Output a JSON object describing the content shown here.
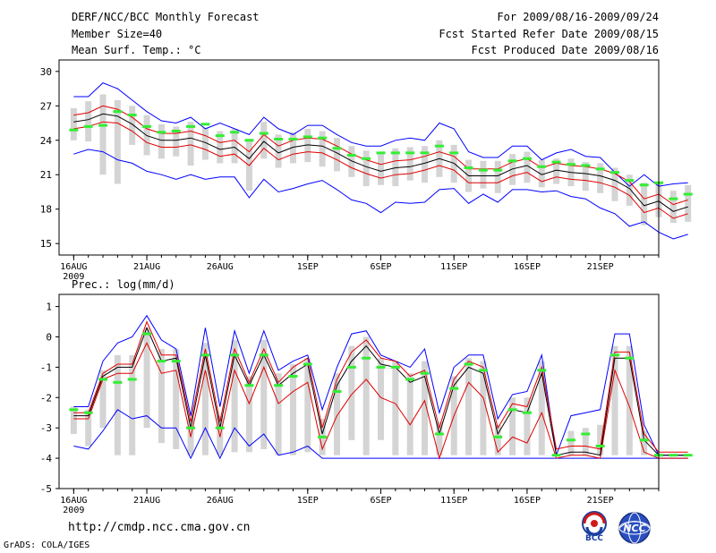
{
  "header": {
    "title": "DERF/NCC/BCC Monthly Forecast",
    "member_size": "Member Size=40",
    "variable": "Mean Surf. Temp.: °C",
    "period": "For 2009/08/16-2009/09/24",
    "fcst_started": "Fcst Started Refer Date 2009/08/15",
    "fcst_produced": "Fcst Produced Date 2009/08/16"
  },
  "precip_label": "Prec.: log(mm/d)",
  "footer": {
    "url": "http://cmdp.ncc.cma.gov.cn",
    "grads_credit": "GrADS: COLA/IGES",
    "logo_left_text": "BCC",
    "logo_right_text": "NCC"
  },
  "colors": {
    "frame": "#000000",
    "bar": "#d4d4d4",
    "mean": "#000000",
    "std_band": "#e00000",
    "envelope": "#0000ff",
    "marker": "#33ee33",
    "tick_grid": "#000000"
  },
  "chart_data": [
    {
      "name": "temperature-chart",
      "type": "line",
      "ylabel": "Mean Surf. Temp.: °C",
      "ylim": [
        14,
        31
      ],
      "yticks": [
        15,
        18,
        21,
        24,
        27,
        30
      ],
      "x_labels": [
        {
          "day": 0,
          "text": "16AUG",
          "sub": "2009"
        },
        {
          "day": 5,
          "text": "21AUG"
        },
        {
          "day": 10,
          "text": "26AUG"
        },
        {
          "day": 16,
          "text": "1SEP"
        },
        {
          "day": 21,
          "text": "6SEP"
        },
        {
          "day": 26,
          "text": "11SEP"
        },
        {
          "day": 31,
          "text": "16SEP"
        },
        {
          "day": 36,
          "text": "21SEP"
        }
      ],
      "x_range": [
        -1,
        40
      ],
      "series": [
        {
          "name": "mean",
          "values": [
            25.6,
            25.8,
            26.3,
            26.1,
            25.4,
            24.4,
            24.0,
            24.0,
            24.2,
            23.8,
            23.2,
            23.4,
            22.4,
            23.9,
            22.9,
            23.4,
            23.6,
            23.5,
            22.9,
            22.2,
            21.7,
            21.3,
            21.6,
            21.7,
            22.0,
            22.4,
            22.0,
            20.9,
            20.9,
            20.9,
            21.5,
            21.8,
            21.0,
            21.4,
            21.2,
            21.1,
            20.9,
            20.5,
            19.8,
            18.3,
            18.7,
            17.8,
            18.2
          ]
        },
        {
          "name": "upper-std",
          "values": [
            26.2,
            26.4,
            27.0,
            26.7,
            26.0,
            25.0,
            24.6,
            24.6,
            24.8,
            24.4,
            23.8,
            24.0,
            23.0,
            24.5,
            23.5,
            24.0,
            24.2,
            24.1,
            23.5,
            22.8,
            22.3,
            21.9,
            22.2,
            22.3,
            22.6,
            23.0,
            22.6,
            21.5,
            21.5,
            21.5,
            22.1,
            22.4,
            21.6,
            22.0,
            21.8,
            21.7,
            21.5,
            21.1,
            20.4,
            18.9,
            19.3,
            18.4,
            18.8
          ]
        },
        {
          "name": "lower-std",
          "values": [
            25.0,
            25.2,
            25.6,
            25.5,
            24.8,
            23.8,
            23.4,
            23.4,
            23.6,
            23.2,
            22.6,
            22.8,
            21.8,
            23.3,
            22.3,
            22.8,
            23.0,
            22.9,
            22.3,
            21.6,
            21.1,
            20.7,
            21.0,
            21.1,
            21.4,
            21.8,
            21.4,
            20.3,
            20.3,
            20.3,
            20.9,
            21.2,
            20.4,
            20.8,
            20.6,
            20.5,
            20.3,
            19.9,
            19.2,
            17.7,
            18.1,
            17.2,
            17.6
          ]
        },
        {
          "name": "max",
          "values": [
            27.8,
            27.8,
            29.0,
            28.5,
            27.5,
            26.5,
            25.7,
            25.5,
            26.0,
            25.0,
            25.5,
            25.0,
            24.5,
            26.0,
            25.0,
            24.5,
            25.3,
            25.3,
            24.5,
            23.8,
            23.5,
            23.5,
            24.0,
            24.2,
            24.0,
            25.5,
            25.0,
            23.0,
            22.5,
            22.5,
            23.5,
            23.5,
            22.3,
            22.9,
            23.2,
            22.6,
            22.5,
            21.2,
            20.0,
            21.0,
            20.0,
            20.2,
            20.3
          ]
        },
        {
          "name": "min",
          "values": [
            22.8,
            23.2,
            23.0,
            22.3,
            22.0,
            21.3,
            21.0,
            20.6,
            21.0,
            20.6,
            20.8,
            20.8,
            19.0,
            20.6,
            19.5,
            19.8,
            20.2,
            20.5,
            19.7,
            18.8,
            18.5,
            17.7,
            18.6,
            18.5,
            18.6,
            19.7,
            19.8,
            18.5,
            19.3,
            18.6,
            19.7,
            19.7,
            19.5,
            19.6,
            19.1,
            18.9,
            18.1,
            17.6,
            16.5,
            16.9,
            16.0,
            15.4,
            15.8
          ]
        },
        {
          "name": "bar-top",
          "values": [
            26.8,
            27.4,
            28.0,
            27.5,
            27.0,
            26.2,
            25.4,
            25.2,
            25.6,
            25.1,
            24.8,
            25.0,
            24.0,
            25.6,
            24.5,
            24.7,
            25.0,
            24.8,
            24.2,
            23.5,
            23.1,
            22.9,
            23.3,
            23.4,
            23.5,
            24.0,
            23.6,
            22.3,
            22.2,
            22.2,
            22.8,
            23.0,
            22.3,
            22.4,
            22.4,
            22.1,
            22.0,
            21.6,
            21.0,
            20.3,
            20.2,
            19.6,
            20.1
          ]
        },
        {
          "name": "bar-bottom",
          "values": [
            24.0,
            23.9,
            21.0,
            20.2,
            23.6,
            22.7,
            22.4,
            22.6,
            21.8,
            22.3,
            22.0,
            22.0,
            19.6,
            22.4,
            21.6,
            22.0,
            22.1,
            21.7,
            21.3,
            20.8,
            20.0,
            20.1,
            20.0,
            20.5,
            20.3,
            20.8,
            20.3,
            19.5,
            19.8,
            19.4,
            20.1,
            20.3,
            19.9,
            20.2,
            20.0,
            19.6,
            19.4,
            18.7,
            18.3,
            16.6,
            17.3,
            16.8,
            16.9
          ]
        },
        {
          "name": "observed-marker",
          "values": [
            24.9,
            25.2,
            25.3,
            26.5,
            26.2,
            25.2,
            24.7,
            24.8,
            25.2,
            25.4,
            24.4,
            24.7,
            24.0,
            24.6,
            24.1,
            24.1,
            24.3,
            24.2,
            23.3,
            22.7,
            22.4,
            22.9,
            22.9,
            22.9,
            22.9,
            23.5,
            22.9,
            21.6,
            21.4,
            21.4,
            22.2,
            22.4,
            21.7,
            22.1,
            21.9,
            21.8,
            21.5,
            21.2,
            20.5,
            20.1,
            20.3,
            18.9,
            19.3
          ]
        }
      ]
    },
    {
      "name": "precipitation-chart",
      "type": "line",
      "ylabel": "Prec.: log(mm/d)",
      "ylim": [
        -5,
        1.4
      ],
      "yticks": [
        -5,
        -4,
        -3,
        -2,
        -1,
        0,
        1
      ],
      "x_labels": [
        {
          "day": 0,
          "text": "16AUG",
          "sub": "2009"
        },
        {
          "day": 5,
          "text": "21AUG"
        },
        {
          "day": 10,
          "text": "26AUG"
        },
        {
          "day": 16,
          "text": "1SEP"
        },
        {
          "day": 21,
          "text": "6SEP"
        },
        {
          "day": 26,
          "text": "11SEP"
        },
        {
          "day": 31,
          "text": "16SEP"
        },
        {
          "day": 36,
          "text": "21SEP"
        }
      ],
      "x_range": [
        -1,
        40
      ],
      "series": [
        {
          "name": "mean",
          "values": [
            -2.6,
            -2.6,
            -1.3,
            -1.0,
            -1.0,
            0.3,
            -0.8,
            -0.7,
            -3.0,
            -0.6,
            -3.0,
            -0.6,
            -1.6,
            -0.6,
            -1.6,
            -1.2,
            -0.9,
            -3.2,
            -1.6,
            -0.8,
            -0.3,
            -0.9,
            -1.0,
            -1.5,
            -1.3,
            -3.2,
            -1.6,
            -1.0,
            -1.2,
            -3.2,
            -2.4,
            -2.5,
            -1.2,
            -3.9,
            -3.8,
            -3.8,
            -3.9,
            -0.7,
            -0.7,
            -3.4,
            -3.9,
            -3.9,
            -3.9
          ]
        },
        {
          "name": "upper-std",
          "values": [
            -2.5,
            -2.5,
            -1.2,
            -0.9,
            -0.9,
            0.5,
            -0.6,
            -0.6,
            -2.8,
            -0.4,
            -2.8,
            -0.4,
            -1.5,
            -0.4,
            -1.5,
            -1.0,
            -0.7,
            -3.0,
            -1.4,
            -0.5,
            -0.1,
            -0.7,
            -0.8,
            -1.3,
            -1.1,
            -3.0,
            -1.4,
            -0.8,
            -1.0,
            -3.0,
            -2.2,
            -2.3,
            -1.0,
            -3.7,
            -3.6,
            -3.6,
            -3.7,
            -0.5,
            -0.5,
            -3.2,
            -3.8,
            -3.8,
            -3.8
          ]
        },
        {
          "name": "lower-std",
          "values": [
            -2.7,
            -2.7,
            -1.4,
            -1.2,
            -1.2,
            -0.2,
            -1.2,
            -1.1,
            -3.3,
            -1.1,
            -3.3,
            -1.1,
            -2.2,
            -1.0,
            -2.2,
            -1.8,
            -1.5,
            -3.7,
            -2.6,
            -1.9,
            -1.4,
            -2.0,
            -2.2,
            -2.9,
            -2.1,
            -4.0,
            -2.6,
            -1.5,
            -2.0,
            -3.8,
            -3.3,
            -3.5,
            -2.5,
            -4.0,
            -3.9,
            -3.9,
            -4.0,
            -1.1,
            -2.3,
            -3.8,
            -4.0,
            -4.0,
            -4.0
          ]
        },
        {
          "name": "max",
          "values": [
            -2.3,
            -2.3,
            -0.8,
            -0.2,
            0.0,
            0.7,
            -0.1,
            -0.4,
            -2.6,
            0.3,
            -2.3,
            0.2,
            -1.2,
            0.2,
            -1.1,
            -0.8,
            -0.6,
            -2.4,
            -1.0,
            0.1,
            0.2,
            -0.6,
            -0.8,
            -1.0,
            -0.4,
            -2.5,
            -1.0,
            -0.6,
            -0.6,
            -2.7,
            -1.9,
            -1.8,
            -0.6,
            -3.9,
            -2.6,
            -2.5,
            -2.4,
            0.1,
            0.1,
            -2.9,
            -3.9,
            -3.9,
            -3.9
          ]
        },
        {
          "name": "min",
          "values": [
            -3.6,
            -3.7,
            -3.1,
            -2.4,
            -2.7,
            -2.6,
            -3.0,
            -3.0,
            -4.0,
            -3.0,
            -4.0,
            -3.0,
            -3.6,
            -3.2,
            -3.9,
            -3.8,
            -3.6,
            -4.0,
            -4.0,
            -4.0,
            -4.0,
            -4.0,
            -4.0,
            -4.0,
            -4.0,
            -4.0,
            -4.0,
            -4.0,
            -4.0,
            -4.0,
            -4.0,
            -4.0,
            -4.0,
            -4.0,
            -4.0,
            -4.0,
            -4.0,
            -4.0,
            -4.0,
            -4.0,
            -4.0,
            -4.0,
            -4.0
          ]
        },
        {
          "name": "bar-top",
          "values": [
            -2.3,
            -2.4,
            -1.1,
            -0.6,
            -0.6,
            0.3,
            -0.4,
            -0.4,
            -2.7,
            -0.2,
            -2.6,
            -0.1,
            -1.3,
            -0.1,
            -1.2,
            -0.9,
            -0.7,
            -2.7,
            -1.2,
            -0.3,
            0.0,
            -0.7,
            -0.8,
            -1.2,
            -0.8,
            -2.8,
            -1.3,
            -0.7,
            -0.8,
            -2.9,
            -2.0,
            -2.0,
            -0.8,
            -3.9,
            -3.1,
            -3.0,
            -2.9,
            -0.3,
            -0.3,
            -3.1,
            -3.9,
            -3.9,
            -3.9
          ]
        },
        {
          "name": "bar-bottom",
          "values": [
            -3.2,
            -3.6,
            -3.0,
            -3.9,
            -3.9,
            -3.0,
            -3.5,
            -3.7,
            -3.9,
            -3.9,
            -3.9,
            -3.8,
            -3.8,
            -3.7,
            -3.9,
            -3.9,
            -3.8,
            -3.9,
            -3.9,
            -3.4,
            -3.9,
            -3.4,
            -3.9,
            -3.9,
            -3.9,
            -3.9,
            -3.9,
            -3.9,
            -3.9,
            -3.9,
            -3.9,
            -3.9,
            -3.9,
            -3.9,
            -3.9,
            -3.9,
            -3.9,
            -3.9,
            -3.9,
            -3.9,
            -3.9,
            -3.9,
            -3.9
          ]
        },
        {
          "name": "observed-marker",
          "values": [
            -2.4,
            -2.5,
            -1.4,
            -1.5,
            -1.4,
            0.1,
            -0.8,
            -0.8,
            -3.0,
            -0.6,
            -3.0,
            -0.6,
            -1.6,
            -0.6,
            -1.6,
            -1.3,
            -0.9,
            -3.3,
            -1.8,
            -1.0,
            -0.7,
            -1.0,
            -1.0,
            -1.4,
            -1.2,
            -3.2,
            -1.7,
            -0.9,
            -1.1,
            -3.3,
            -2.4,
            -2.5,
            -1.1,
            -3.9,
            -3.4,
            -3.2,
            -3.6,
            -0.6,
            -0.7,
            -3.4,
            -3.9,
            -3.9,
            -3.9
          ]
        }
      ]
    }
  ]
}
